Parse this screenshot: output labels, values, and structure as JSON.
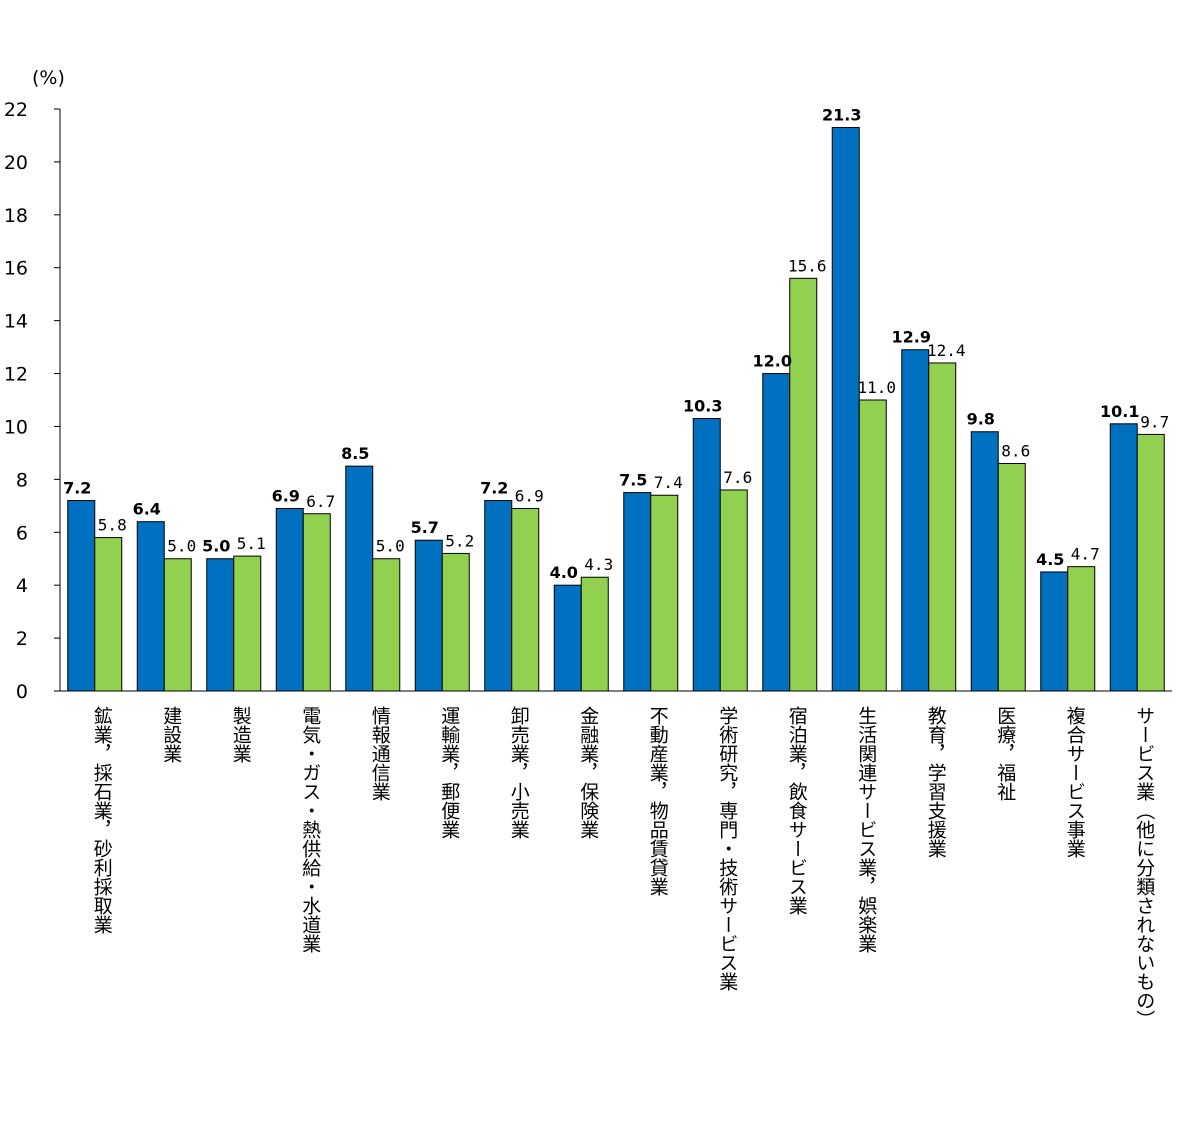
{
  "chart_data": {
    "type": "bar",
    "title": "",
    "xlabel": "",
    "ylabel": "",
    "unit": "(%)",
    "ylim": [
      0,
      22
    ],
    "yticks": [
      0,
      2,
      4,
      6,
      8,
      10,
      12,
      14,
      16,
      18,
      20,
      22
    ],
    "grid": false,
    "legend": "none",
    "categories": [
      "鉱業，採石業，砂利採取業",
      "建設業",
      "製造業",
      "電気・ガス・熱供給・水道業",
      "情報通信業",
      "運輸業，郵便業",
      "卸売業，小売業",
      "金融業，保険業",
      "不動産業，物品賃貸業",
      "学術研究，専門・技術サービス業",
      "宿泊業，飲食サービス業",
      "生活関連サービス業，娯楽業",
      "教育，学習支援業",
      "医療，福祉",
      "複合サービス事業",
      "サービス業（他に分類されないもの）"
    ],
    "series": [
      {
        "color": "#0070C0",
        "values": [
          7.2,
          6.4,
          5.0,
          6.9,
          8.5,
          5.7,
          7.2,
          4.0,
          7.5,
          10.3,
          12.0,
          21.3,
          12.9,
          9.8,
          4.5,
          10.1
        ]
      },
      {
        "color": "#92D050",
        "values": [
          5.8,
          5.0,
          5.1,
          6.7,
          5.0,
          5.2,
          6.9,
          4.3,
          7.4,
          7.6,
          15.6,
          11.0,
          12.4,
          8.6,
          4.7,
          9.7
        ]
      }
    ]
  }
}
